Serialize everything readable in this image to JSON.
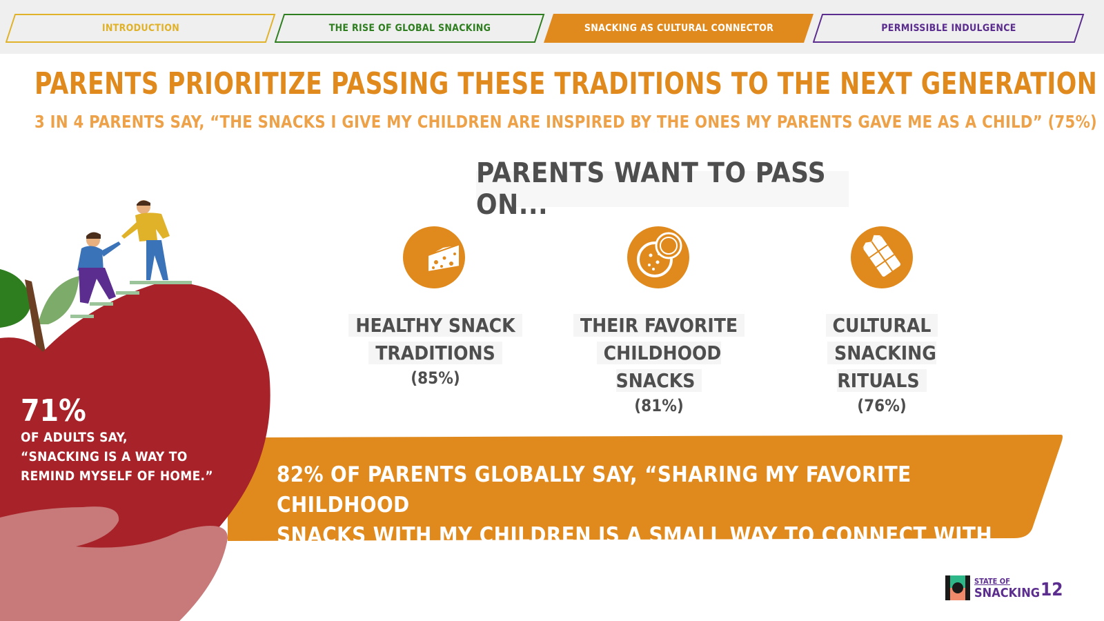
{
  "nav": {
    "tabs": [
      {
        "label": "INTRODUCTION",
        "color": "#e0b22a",
        "active": false
      },
      {
        "label": "THE RISE OF GLOBAL SNACKING",
        "color": "#2e7d1f",
        "active": false
      },
      {
        "label": "SNACKING AS CULTURAL CONNECTOR",
        "color": "#e08a1e",
        "active": true
      },
      {
        "label": "PERMISSIBLE INDULGENCE",
        "color": "#5b2d8e",
        "active": false
      }
    ]
  },
  "title": "PARENTS PRIORITIZE PASSING THESE TRADITIONS TO THE NEXT GENERATION",
  "subtitle": "3 IN 4 PARENTS SAY, “THE SNACKS I GIVE MY CHILDREN ARE INSPIRED BY THE ONES MY PARENTS GAVE ME AS A CHILD” (75%)",
  "pass_on": {
    "heading": "PARENTS WANT TO PASS ON...",
    "items": [
      {
        "icon": "cheese-icon",
        "line1": "HEALTHY SNACK",
        "line2": "TRADITIONS",
        "pct": "(85%)"
      },
      {
        "icon": "cookie-icon",
        "line1": "THEIR FAVORITE",
        "line2": "CHILDHOOD SNACKS",
        "pct": "(81%)"
      },
      {
        "icon": "chocolate-icon",
        "line1": "CULTURAL",
        "line2": "SNACKING RITUALS",
        "pct": "(76%)"
      }
    ]
  },
  "adults": {
    "value": "71%",
    "line1": "OF ADULTS SAY,",
    "line2": "“SNACKING IS A WAY TO",
    "line3": "REMIND MYSELF OF HOME.”"
  },
  "banner": {
    "line1": "82% OF PARENTS GLOBALLY SAY, “SHARING MY FAVORITE CHILDHOOD",
    "line2": "SNACKS WITH MY CHILDREN IS A SMALL WAY TO CONNECT WITH THEM.”"
  },
  "footer": {
    "logo_line1": "STATE OF",
    "logo_line2": "SNACKING",
    "page_number": "12"
  },
  "colors": {
    "accent": "#e08a1e",
    "apple": "#a72329",
    "text_dark": "#4e4e4e",
    "brand_purple": "#5b2d8e"
  }
}
